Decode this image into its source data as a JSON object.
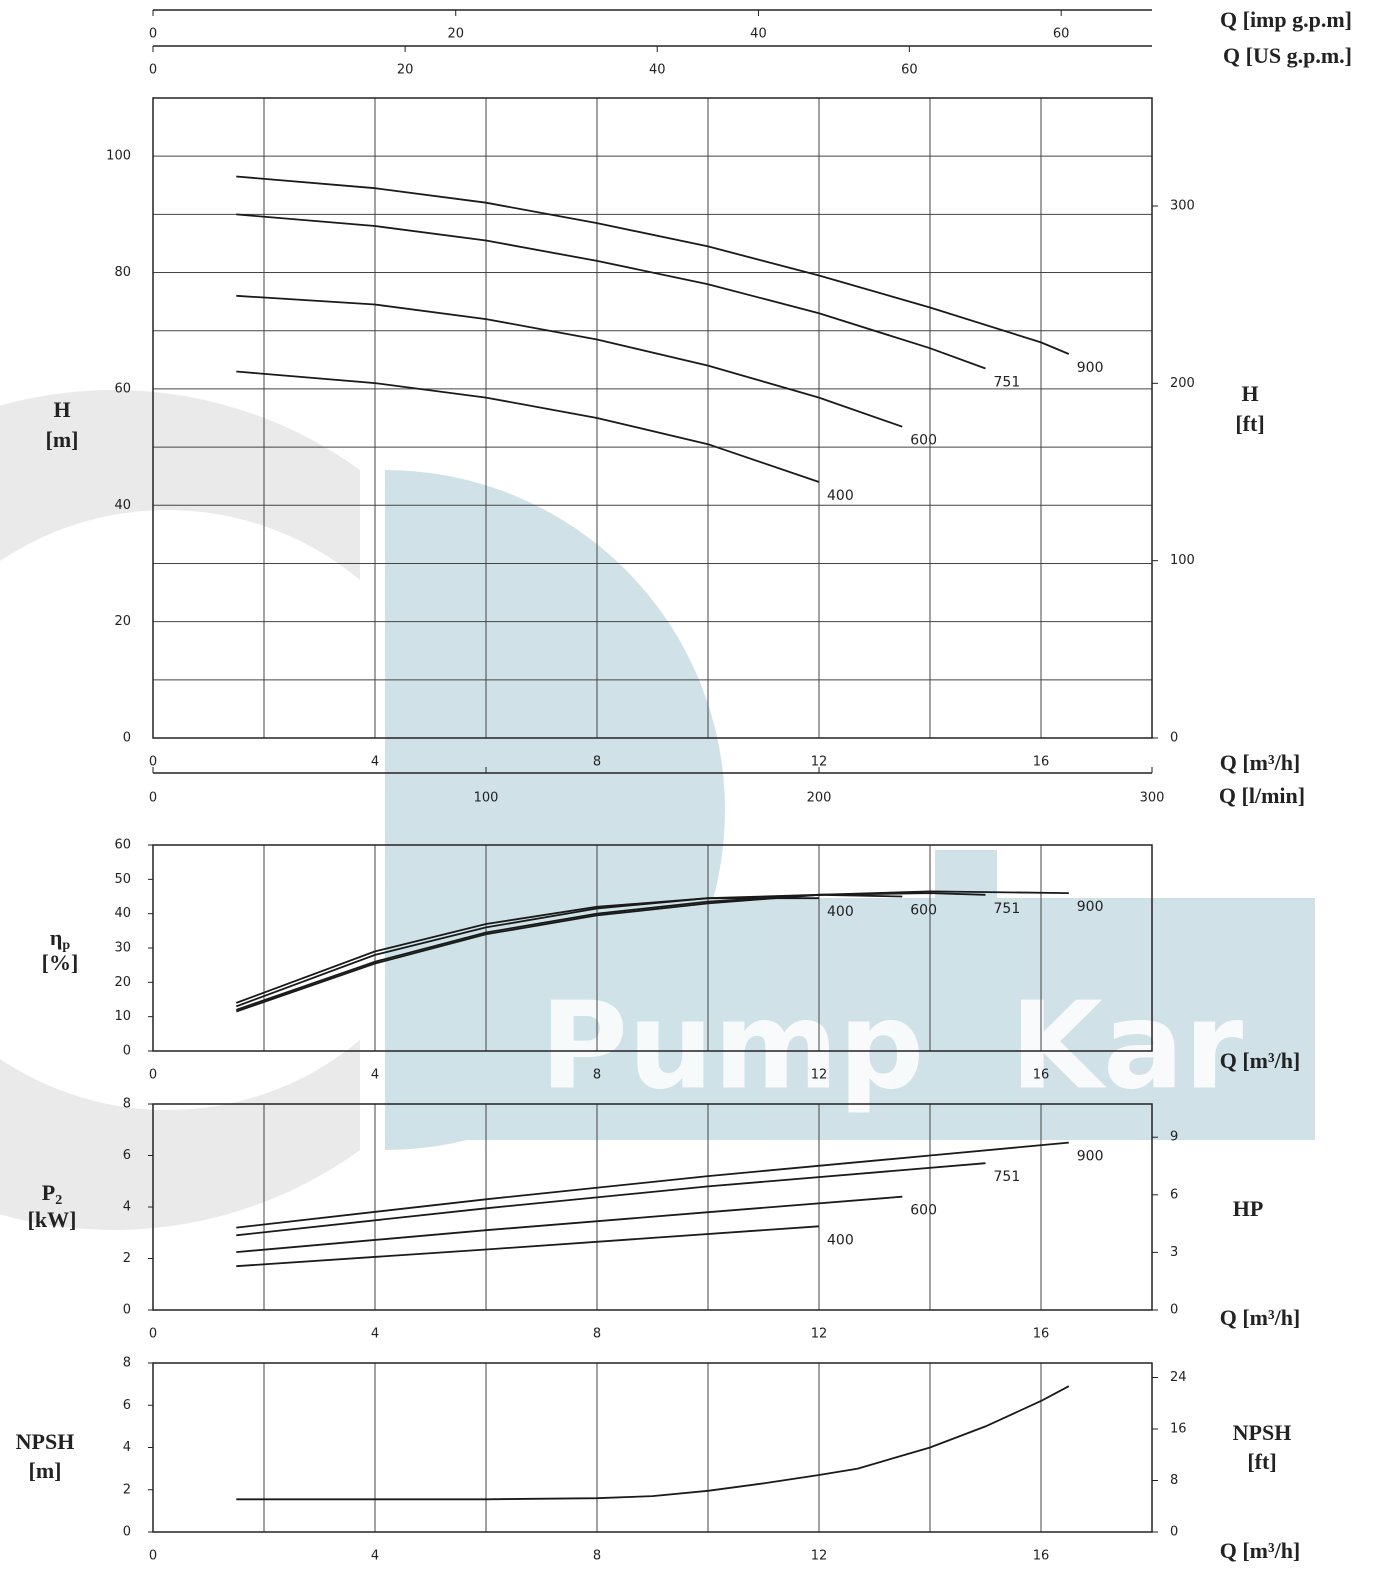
{
  "watermark": [
    "Pump",
    "Kar"
  ],
  "chart_data": [
    {
      "type": "line",
      "xlabel": "Q [m³/h]",
      "xlim": [
        0,
        18
      ],
      "xticks": [
        0,
        4,
        8,
        12,
        16
      ],
      "xminorticks": [
        2,
        6,
        10,
        14
      ],
      "ylim": [
        0,
        110
      ],
      "yticks": [
        0,
        20,
        40,
        60,
        80,
        100
      ],
      "yminorticks": [
        10,
        30,
        50,
        70,
        90
      ],
      "ylabel": [
        "H",
        "[m]"
      ],
      "y2lim": [
        0,
        360.9
      ],
      "y2ticks": [
        0,
        100,
        200,
        300
      ],
      "y2label": [
        "H",
        "[ft]"
      ],
      "xgrid": true,
      "ygrid": true,
      "top_axes": [
        {
          "label": "Q [imp g.p.m]",
          "lim": [
            0,
            66
          ],
          "ticks": [
            0,
            20,
            40,
            60
          ]
        },
        {
          "label": "Q [US g.p.m.]",
          "lim": [
            0,
            79.25
          ],
          "ticks": [
            0,
            20,
            40,
            60
          ]
        }
      ],
      "bottom_axis": {
        "label": "Q [l/min]",
        "lim": [
          0,
          300
        ],
        "ticks": [
          0,
          100,
          200,
          300
        ]
      },
      "series": [
        {
          "name": "900",
          "color": "#1a1a1a",
          "x": [
            1.5,
            4,
            6,
            8,
            10,
            12,
            14,
            16,
            16.5
          ],
          "values": [
            96.5,
            94.5,
            92,
            88.5,
            84.5,
            79.5,
            74,
            68,
            66
          ]
        },
        {
          "name": "751",
          "color": "#1a1a1a",
          "x": [
            1.5,
            4,
            6,
            8,
            10,
            12,
            14,
            15
          ],
          "values": [
            90,
            88,
            85.5,
            82,
            78,
            73,
            67,
            63.5
          ]
        },
        {
          "name": "600",
          "color": "#1a1a1a",
          "x": [
            1.5,
            4,
            6,
            8,
            10,
            12,
            13.5
          ],
          "values": [
            76,
            74.5,
            72,
            68.5,
            64,
            58.5,
            53.5
          ]
        },
        {
          "name": "400",
          "color": "#1a1a1a",
          "x": [
            1.5,
            4,
            6,
            8,
            10,
            12
          ],
          "values": [
            63,
            61,
            58.5,
            55,
            50.5,
            44
          ]
        }
      ]
    },
    {
      "type": "line",
      "xlabel": "Q [m³/h]",
      "xlim": [
        0,
        18
      ],
      "xticks": [
        0,
        4,
        8,
        12,
        16
      ],
      "xminorticks": [
        2,
        6,
        10,
        14
      ],
      "ylim": [
        0,
        60
      ],
      "yticks": [
        0,
        10,
        20,
        30,
        40,
        50,
        60
      ],
      "ylabel": [
        "η",
        "[%]"
      ],
      "ylabel_sub": "p",
      "xgrid": true,
      "ygrid": false,
      "series": [
        {
          "name": "400",
          "color": "#1a1a1a",
          "x": [
            1.5,
            4,
            6,
            8,
            10,
            12
          ],
          "values": [
            14,
            29,
            37,
            42,
            44.5,
            44.5
          ]
        },
        {
          "name": "600",
          "color": "#1a1a1a",
          "x": [
            1.5,
            4,
            6,
            8,
            10,
            12,
            13.5
          ],
          "values": [
            13,
            28,
            36,
            41.5,
            44.5,
            45.5,
            45
          ]
        },
        {
          "name": "751",
          "color": "#1a1a1a",
          "x": [
            1.5,
            4,
            6,
            8,
            10,
            12,
            14,
            15
          ],
          "values": [
            12,
            26,
            34.5,
            40,
            43.5,
            45.5,
            46,
            45.5
          ]
        },
        {
          "name": "900",
          "color": "#1a1a1a",
          "x": [
            1.5,
            4,
            6,
            8,
            10,
            12,
            14,
            16.5
          ],
          "values": [
            11.5,
            25.5,
            34,
            39.5,
            43,
            45.5,
            46.5,
            46
          ]
        }
      ]
    },
    {
      "type": "line",
      "xlabel": "Q [m³/h]",
      "xlim": [
        0,
        18
      ],
      "xticks": [
        0,
        4,
        8,
        12,
        16
      ],
      "xminorticks": [
        2,
        6,
        10,
        14
      ],
      "ylim": [
        0,
        8
      ],
      "yticks": [
        0,
        2,
        4,
        6,
        8
      ],
      "ylabel": [
        "P",
        "[kW]"
      ],
      "ylabel_sub": "2",
      "y2lim": [
        0,
        10.73
      ],
      "y2ticks": [
        0,
        3,
        6,
        9
      ],
      "y2label": [
        "HP"
      ],
      "xgrid": true,
      "ygrid": false,
      "series": [
        {
          "name": "900",
          "color": "#1a1a1a",
          "x": [
            1.5,
            6,
            10,
            14,
            16.5
          ],
          "values": [
            3.2,
            4.3,
            5.2,
            6.0,
            6.5
          ]
        },
        {
          "name": "751",
          "color": "#1a1a1a",
          "x": [
            1.5,
            6,
            10,
            15
          ],
          "values": [
            2.9,
            3.95,
            4.8,
            5.7
          ]
        },
        {
          "name": "600",
          "color": "#1a1a1a",
          "x": [
            1.5,
            6,
            10,
            13.5
          ],
          "values": [
            2.25,
            3.1,
            3.8,
            4.4
          ]
        },
        {
          "name": "400",
          "color": "#1a1a1a",
          "x": [
            1.5,
            6,
            9,
            12
          ],
          "values": [
            1.7,
            2.35,
            2.8,
            3.25
          ]
        }
      ]
    },
    {
      "type": "line",
      "xlabel": "Q [m³/h]",
      "xlim": [
        0,
        18
      ],
      "xticks": [
        0,
        4,
        8,
        12,
        16
      ],
      "xminorticks": [
        2,
        6,
        10,
        14
      ],
      "ylim": [
        0,
        8
      ],
      "yticks": [
        0,
        2,
        4,
        6,
        8
      ],
      "ylabel": [
        "NPSH",
        "[m]"
      ],
      "y2lim": [
        0,
        26.25
      ],
      "y2ticks": [
        0,
        8,
        16,
        24
      ],
      "y2label": [
        "NPSH",
        "[ft]"
      ],
      "xgrid": true,
      "ygrid": false,
      "series": [
        {
          "color": "#1a1a1a",
          "x": [
            1.5,
            4,
            6,
            8,
            9,
            10,
            11,
            12,
            12.7,
            14,
            15,
            16,
            16.5
          ],
          "values": [
            1.55,
            1.55,
            1.55,
            1.6,
            1.7,
            1.95,
            2.3,
            2.7,
            3.0,
            4.0,
            5.0,
            6.2,
            6.9
          ]
        }
      ]
    }
  ]
}
